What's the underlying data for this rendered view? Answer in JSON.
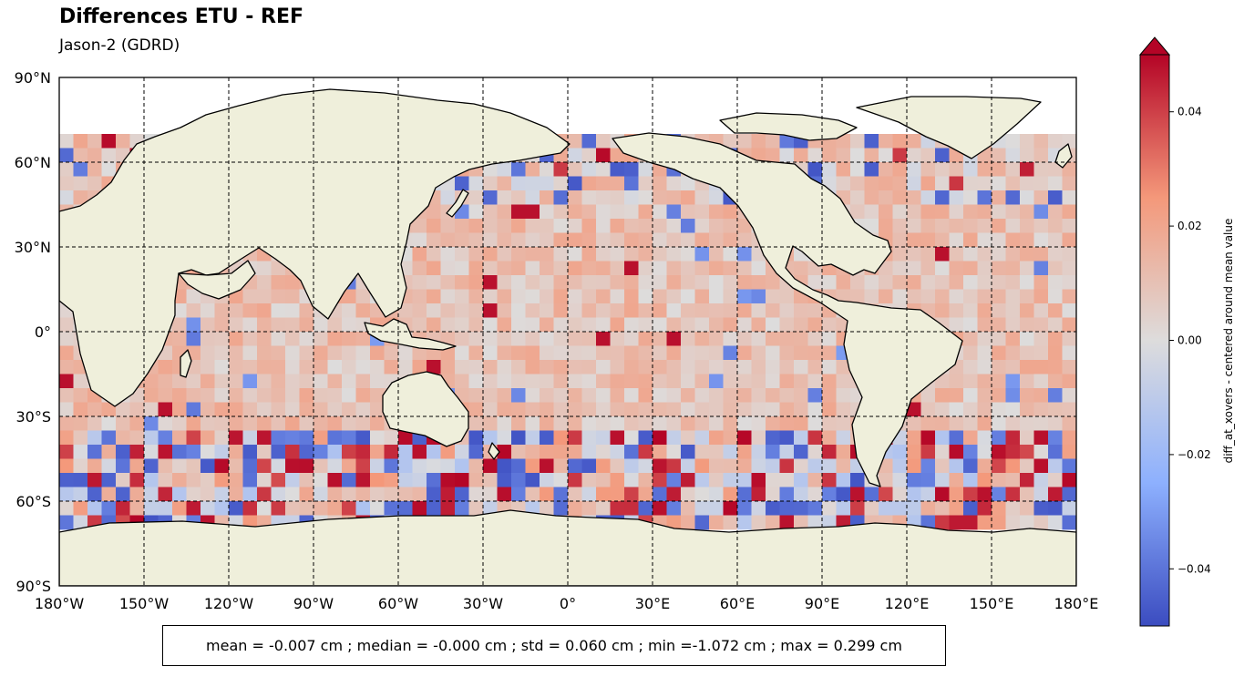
{
  "title": "Differences ETU - REF",
  "subtitle": "Jason-2 (GDRD)",
  "map": {
    "lon_range": [
      -180,
      180
    ],
    "lat_range": [
      -90,
      90
    ],
    "gridlines": "dashed",
    "land_color": "#efefdb",
    "lon_ticks": [
      "180°W",
      "150°W",
      "120°W",
      "90°W",
      "60°W",
      "30°W",
      "0°",
      "30°E",
      "60°E",
      "90°E",
      "120°E",
      "150°E",
      "180°E"
    ],
    "lat_ticks": [
      "90°N",
      "60°N",
      "30°N",
      "0°",
      "30°S",
      "60°S",
      "90°S"
    ]
  },
  "colorbar": {
    "label": "diff_at_xovers - centered around mean value",
    "range": [
      -0.05,
      0.05
    ],
    "ticks": [
      "0.04",
      "0.02",
      "0.00",
      "−0.02",
      "−0.04"
    ],
    "tick_values": [
      0.04,
      0.02,
      0.0,
      -0.02,
      -0.04
    ],
    "colormap": "coolwarm",
    "extend": "max"
  },
  "stats": "mean = -0.007 cm ; median = -0.000 cm ; std = 0.060 cm ; min =-1.072 cm ; max = 0.299 cm"
}
